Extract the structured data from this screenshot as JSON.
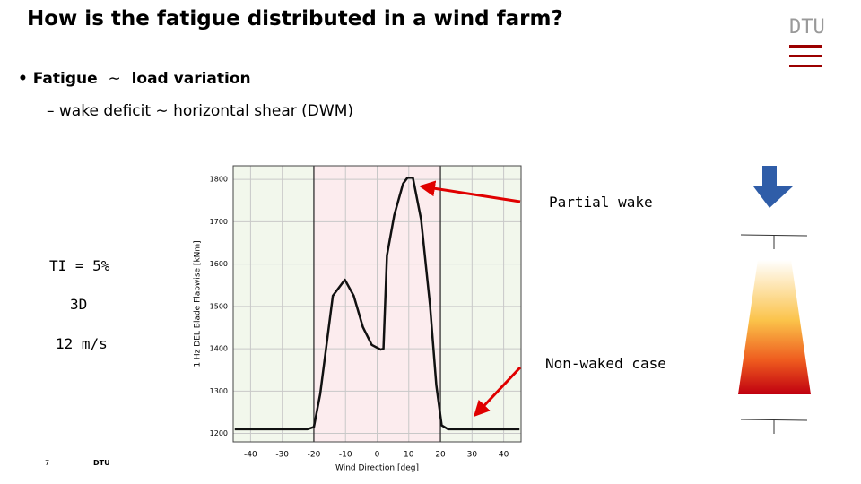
{
  "slide": {
    "title": "How is the fatigue distributed in a wind farm?",
    "bullet": [
      "Fatigue",
      "∼",
      "load variation"
    ],
    "sub_bullet": "– wake deficit  ∼  horizontal shear (DWM)",
    "params": [
      "TI = 5%",
      "3D",
      "12 m/s"
    ],
    "annotations": [
      "Partial wake",
      "Non-waked case"
    ],
    "logo": "DTU",
    "page_number": "7",
    "footer": "DTU"
  },
  "chart_data": {
    "type": "line",
    "x_label": "Wind Direction [deg]",
    "y_label": "1 Hz DEL Blade Flapwise [kNm]",
    "x": [
      -45,
      -22,
      -20,
      -18,
      -16,
      -14,
      -10.2,
      -7.4,
      -4.5,
      -1.7,
      1.1,
      2,
      3.1,
      5.4,
      8.2,
      9.6,
      11.3,
      13.9,
      16.7,
      18.7,
      20.4,
      22.4,
      45
    ],
    "series": [
      {
        "color": "#111111",
        "values": [
          1210,
          1210,
          1215,
          1293,
          1409,
          1525,
          1563,
          1525,
          1451,
          1409,
          1398,
          1400,
          1620,
          1715,
          1790,
          1804,
          1804,
          1705,
          1504,
          1314,
          1219,
          1210,
          1210
        ]
      }
    ],
    "xlim": [
      -45.5,
      45.5
    ],
    "xticks": [
      -40,
      -30,
      -20,
      -10,
      0,
      10,
      20,
      30,
      40
    ],
    "ylim": [
      1180,
      1832
    ],
    "yticks": [
      1200,
      1300,
      1400,
      1500,
      1600,
      1700,
      1800
    ],
    "grid": true,
    "background": "#f2f7ec",
    "regions": [
      {
        "from": -20,
        "to": 20,
        "color": "#fcecee"
      }
    ]
  }
}
